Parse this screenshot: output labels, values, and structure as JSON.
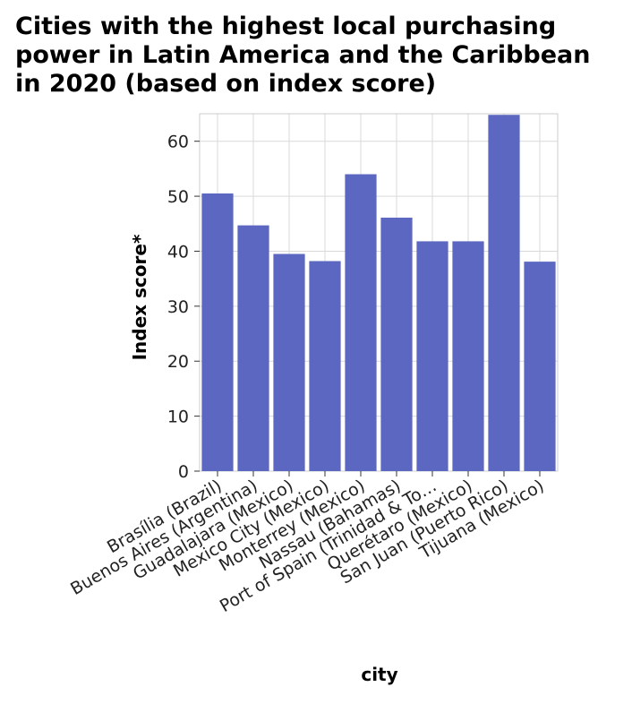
{
  "chart_data": {
    "type": "bar",
    "title": "Cities with the highest local purchasing power in Latin America and the Caribbean in 2020 (based on index score)",
    "xlabel": "city",
    "ylabel": "Index score*",
    "categories": [
      "Brasília (Brazil)",
      "Buenos Aires (Argentina)",
      "Guadalajara (Mexico)",
      "Mexico City (Mexico)",
      "Monterrey (Mexico)",
      "Nassau (Bahamas)",
      "Port of Spain (Trinidad & To…",
      "Querétaro (Mexico)",
      "San Juan (Puerto Rico)",
      "Tijuana (Mexico)"
    ],
    "values": [
      50.5,
      44.7,
      39.5,
      38.2,
      54.0,
      46.1,
      41.8,
      41.8,
      64.8,
      38.1
    ],
    "ylim": [
      0,
      65
    ],
    "yticks": [
      0,
      10,
      20,
      30,
      40,
      50,
      60
    ],
    "grid": true,
    "colors": {
      "bar": "#5b67c1",
      "grid": "#d9d9d9",
      "axis": "#cccccc",
      "background": "#ffffff"
    }
  }
}
